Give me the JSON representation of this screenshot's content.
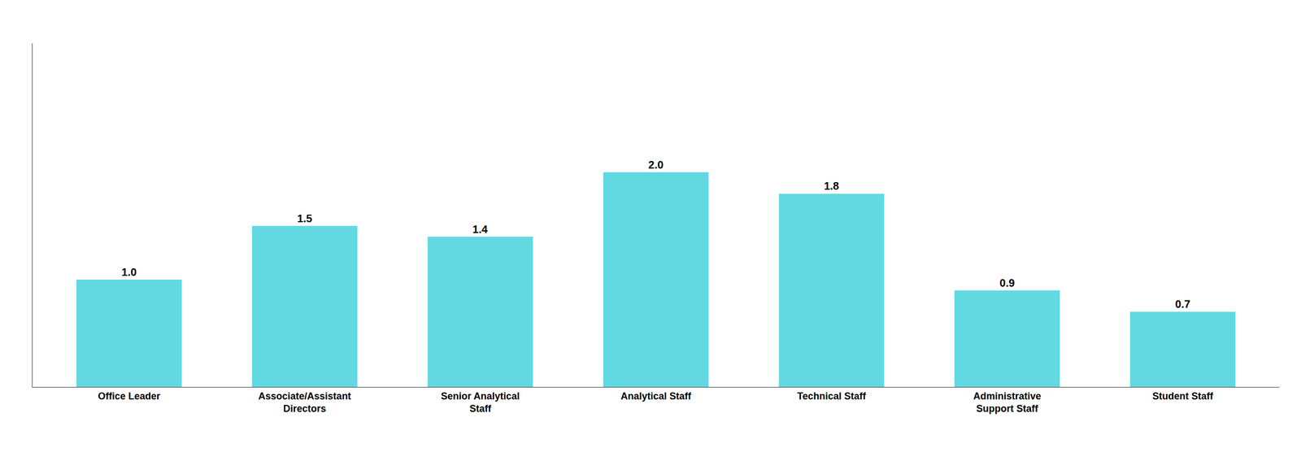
{
  "chart_data": {
    "type": "bar",
    "categories": [
      "Office Leader",
      "Associate/Assistant\nDirectors",
      "Senior Analytical\nStaff",
      "Analytical Staff",
      "Technical Staff",
      "Administrative\nSupport Staff",
      "Student Staff"
    ],
    "values": [
      1.0,
      1.5,
      1.4,
      2.0,
      1.8,
      0.9,
      0.7
    ],
    "value_labels": [
      "1.0",
      "1.5",
      "1.4",
      "2.0",
      "1.8",
      "0.9",
      "0.7"
    ],
    "color": "#62D9E0",
    "ylim": [
      0,
      3.2
    ],
    "grid": false,
    "data_labels": true,
    "tick_labels": "x"
  }
}
